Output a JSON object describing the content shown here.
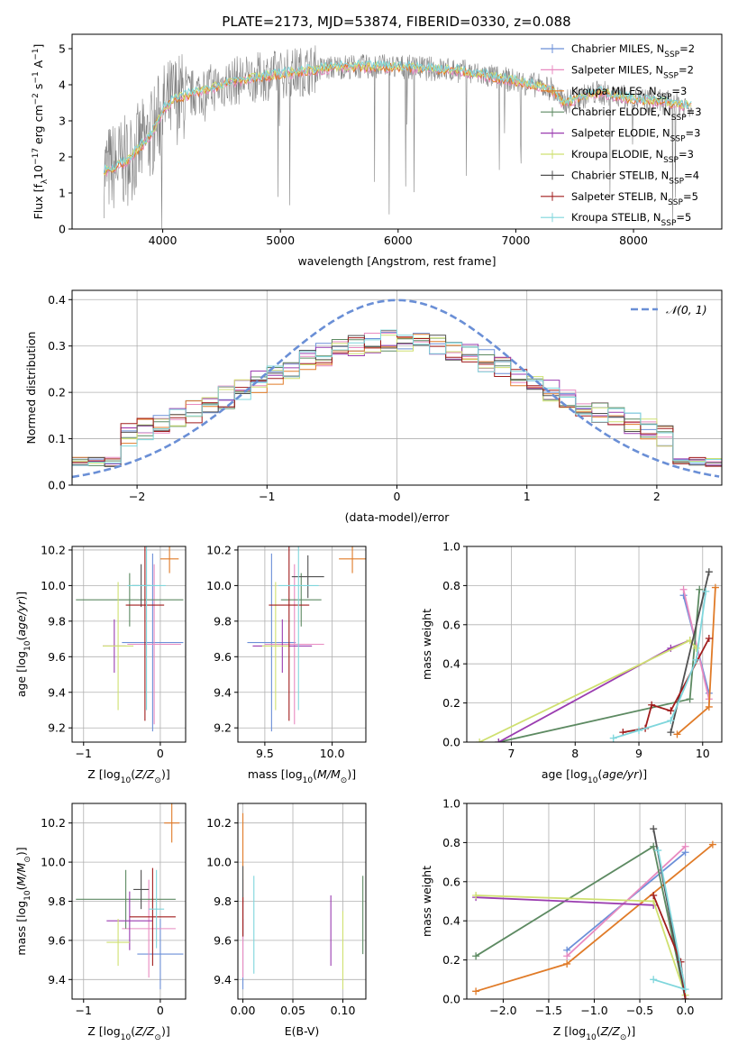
{
  "figure_title": "PLATE=2173, MJD=53874, FIBERID=0330, z=0.088",
  "colors": {
    "c1": "#6b8fd8",
    "c2": "#e88ac0",
    "c3": "#e07b28",
    "c4": "#5d8a62",
    "c5": "#9a3cb0",
    "c6": "#cfe070",
    "c7": "#505050",
    "c8": "#a01c1c",
    "c9": "#7fd6dc",
    "data": "#808080",
    "gauss": "#6a8fd6"
  },
  "chart_data": [
    {
      "type": "line",
      "id": "spectrum",
      "xlabel": "wavelength [Angstrom, rest frame]",
      "ylabel": "Flux [f",
      "xlim": [
        3230,
        8750
      ],
      "ylim": [
        0,
        5.4
      ],
      "xticks": [
        "4000",
        "5000",
        "6000",
        "7000",
        "8000"
      ],
      "yticks": [
        "0",
        "1",
        "2",
        "3",
        "4",
        "5"
      ],
      "legend_position": "upper-right",
      "continuum": [
        [
          3500,
          1.6
        ],
        [
          3700,
          1.9
        ],
        [
          3900,
          2.6
        ],
        [
          4000,
          3.3
        ],
        [
          4100,
          3.6
        ],
        [
          4300,
          3.8
        ],
        [
          4600,
          4.1
        ],
        [
          5000,
          4.3
        ],
        [
          5500,
          4.5
        ],
        [
          6000,
          4.5
        ],
        [
          6500,
          4.4
        ],
        [
          7000,
          4.1
        ],
        [
          7300,
          3.9
        ],
        [
          7400,
          3.5
        ],
        [
          7700,
          3.8
        ],
        [
          8000,
          3.6
        ],
        [
          8300,
          3.5
        ],
        [
          8500,
          3.4
        ]
      ],
      "series": [
        {
          "name": "Chabrier MILES, N",
          "sub": "SSP",
          "suffix": "=2",
          "color_key": "c1"
        },
        {
          "name": "Salpeter MILES, N",
          "sub": "SSP",
          "suffix": "=2",
          "color_key": "c2"
        },
        {
          "name": "Kroupa MILES, N",
          "sub": "SSP",
          "suffix": "=3",
          "color_key": "c3"
        },
        {
          "name": "Chabrier ELODIE, N",
          "sub": "SSP",
          "suffix": "=3",
          "color_key": "c4"
        },
        {
          "name": "Salpeter ELODIE, N",
          "sub": "SSP",
          "suffix": "=3",
          "color_key": "c5"
        },
        {
          "name": "Kroupa ELODIE, N",
          "sub": "SSP",
          "suffix": "=3",
          "color_key": "c6"
        },
        {
          "name": "Chabrier STELIB, N",
          "sub": "SSP",
          "suffix": "=4",
          "color_key": "c7"
        },
        {
          "name": "Salpeter STELIB, N",
          "sub": "SSP",
          "suffix": "=5",
          "color_key": "c8"
        },
        {
          "name": "Kroupa STELIB, N",
          "sub": "SSP",
          "suffix": "=5",
          "color_key": "c9"
        }
      ]
    },
    {
      "type": "histogram",
      "id": "residuals",
      "xlabel": "(data-model)/error",
      "ylabel": "Normed distribution",
      "xlim": [
        -2.5,
        2.5
      ],
      "ylim": [
        0,
        0.42
      ],
      "xticks": [
        "−2",
        "−1",
        "0",
        "1",
        "2"
      ],
      "yticks": [
        "0.0",
        "0.1",
        "0.2",
        "0.3",
        "0.4"
      ],
      "bin_width": 0.125,
      "legend": "𝒩(0, 1)",
      "legend_position": "upper-right"
    },
    {
      "type": "errorbar",
      "id": "age-vs-Z",
      "xlabel": "Z [log",
      "ylabel": "age  [log",
      "xlim": [
        -1.15,
        0.33
      ],
      "ylim": [
        9.12,
        10.22
      ],
      "xticks": [
        "−1",
        "0"
      ],
      "yticks": [
        "9.2",
        "9.4",
        "9.6",
        "9.8",
        "10.0",
        "10.2"
      ],
      "points": [
        {
          "c": "c1",
          "x": -0.1,
          "xe": 0.4,
          "y": 9.68,
          "ye": 0.5
        },
        {
          "c": "c2",
          "x": -0.08,
          "xe": 0.35,
          "y": 9.67,
          "ye": 0.45
        },
        {
          "c": "c3",
          "x": 0.12,
          "xe": 0.12,
          "y": 10.15,
          "ye": 0.08
        },
        {
          "c": "c4",
          "x": -0.4,
          "xe": 0.7,
          "y": 9.92,
          "ye": 0.15
        },
        {
          "c": "c5",
          "x": -0.6,
          "xe": 0.15,
          "y": 9.66,
          "ye": 0.15
        },
        {
          "c": "c6",
          "x": -0.55,
          "xe": 0.2,
          "y": 9.66,
          "ye": 0.36
        },
        {
          "c": "c7",
          "x": -0.25,
          "xe": 0.12,
          "y": 10.0,
          "ye": 0.12
        },
        {
          "c": "c8",
          "x": -0.2,
          "xe": 0.25,
          "y": 9.89,
          "ye": 0.65
        },
        {
          "c": "c9",
          "x": -0.18,
          "xe": 0.25,
          "y": 10.0,
          "ye": 0.7
        }
      ]
    },
    {
      "type": "errorbar",
      "id": "age-vs-mass",
      "xlabel": "mass [log",
      "ylabel": "",
      "xlim": [
        9.3,
        10.25
      ],
      "ylim": [
        9.12,
        10.22
      ],
      "xticks": [
        "9.5",
        "10.0"
      ],
      "yticks": [
        "9.2",
        "9.4",
        "9.6",
        "9.8",
        "10.0",
        "10.2"
      ],
      "points": [
        {
          "c": "c1",
          "x": 9.55,
          "xe": 0.18,
          "y": 9.68,
          "ye": 0.5
        },
        {
          "c": "c2",
          "x": 9.72,
          "xe": 0.22,
          "y": 9.67,
          "ye": 0.45
        },
        {
          "c": "c3",
          "x": 10.15,
          "xe": 0.1,
          "y": 10.15,
          "ye": 0.08
        },
        {
          "c": "c4",
          "x": 9.77,
          "xe": 0.15,
          "y": 9.92,
          "ye": 0.15
        },
        {
          "c": "c5",
          "x": 9.63,
          "xe": 0.22,
          "y": 9.66,
          "ye": 0.15
        },
        {
          "c": "c6",
          "x": 9.58,
          "xe": 0.1,
          "y": 9.66,
          "ye": 0.36
        },
        {
          "c": "c7",
          "x": 9.82,
          "xe": 0.12,
          "y": 10.05,
          "ye": 0.12
        },
        {
          "c": "c8",
          "x": 9.68,
          "xe": 0.15,
          "y": 9.89,
          "ye": 0.65
        },
        {
          "c": "c9",
          "x": 9.75,
          "xe": 0.15,
          "y": 10.0,
          "ye": 0.7
        }
      ]
    },
    {
      "type": "line",
      "id": "massweight-vs-age",
      "xlabel": "age  [log",
      "ylabel": "mass weight",
      "xlim": [
        6.3,
        10.3
      ],
      "ylim": [
        0,
        1
      ],
      "xticks": [
        "7",
        "8",
        "9",
        "10"
      ],
      "yticks": [
        "0.0",
        "0.2",
        "0.4",
        "0.6",
        "0.8",
        "1.0"
      ],
      "series": [
        {
          "c": "c1",
          "pts": [
            [
              9.7,
              0.75
            ],
            [
              10.1,
              0.25
            ]
          ]
        },
        {
          "c": "c2",
          "pts": [
            [
              9.7,
              0.78
            ],
            [
              10.1,
              0.22
            ]
          ]
        },
        {
          "c": "c3",
          "pts": [
            [
              9.6,
              0.04
            ],
            [
              10.1,
              0.18
            ],
            [
              10.2,
              0.79
            ]
          ]
        },
        {
          "c": "c4",
          "pts": [
            [
              6.8,
              0.0
            ],
            [
              9.8,
              0.22
            ],
            [
              9.95,
              0.78
            ]
          ]
        },
        {
          "c": "c5",
          "pts": [
            [
              6.8,
              0.0
            ],
            [
              9.5,
              0.48
            ],
            [
              9.8,
              0.52
            ]
          ]
        },
        {
          "c": "c6",
          "pts": [
            [
              6.5,
              0.0
            ],
            [
              9.8,
              0.52
            ],
            [
              9.9,
              0.48
            ]
          ]
        },
        {
          "c": "c7",
          "pts": [
            [
              9.5,
              0.05
            ],
            [
              10.1,
              0.87
            ]
          ]
        },
        {
          "c": "c8",
          "pts": [
            [
              8.75,
              0.05
            ],
            [
              9.1,
              0.07
            ],
            [
              9.2,
              0.19
            ],
            [
              9.5,
              0.16
            ],
            [
              10.1,
              0.53
            ]
          ]
        },
        {
          "c": "c9",
          "pts": [
            [
              8.6,
              0.02
            ],
            [
              9.0,
              0.06
            ],
            [
              9.5,
              0.11
            ],
            [
              9.9,
              0.42
            ],
            [
              10.05,
              0.77
            ]
          ]
        }
      ]
    },
    {
      "type": "errorbar",
      "id": "mass-vs-Z",
      "xlabel": "Z [log",
      "ylabel": "mass [log",
      "xlim": [
        -1.15,
        0.33
      ],
      "ylim": [
        9.3,
        10.3
      ],
      "xticks": [
        "−1",
        "0"
      ],
      "yticks": [
        "9.4",
        "9.6",
        "9.8",
        "10.0",
        "10.2"
      ],
      "points": [
        {
          "c": "c1",
          "x": 0.0,
          "xe": 0.3,
          "y": 9.53,
          "ye": 0.18
        },
        {
          "c": "c2",
          "x": -0.15,
          "xe": 0.35,
          "y": 9.66,
          "ye": 0.25
        },
        {
          "c": "c3",
          "x": 0.15,
          "xe": 0.1,
          "y": 10.2,
          "ye": 0.1
        },
        {
          "c": "c4",
          "x": -0.45,
          "xe": 0.65,
          "y": 9.81,
          "ye": 0.15
        },
        {
          "c": "c5",
          "x": -0.4,
          "xe": 0.3,
          "y": 9.7,
          "ye": 0.15
        },
        {
          "c": "c6",
          "x": -0.55,
          "xe": 0.15,
          "y": 9.59,
          "ye": 0.12
        },
        {
          "c": "c7",
          "x": -0.25,
          "xe": 0.1,
          "y": 9.86,
          "ye": 0.1
        },
        {
          "c": "c8",
          "x": -0.1,
          "xe": 0.3,
          "y": 9.72,
          "ye": 0.25
        },
        {
          "c": "c9",
          "x": -0.05,
          "xe": 0.1,
          "y": 9.76,
          "ye": 0.2
        }
      ]
    },
    {
      "type": "errorbar",
      "id": "mass-vs-EBV",
      "xlabel": "E(B-V)",
      "ylabel": "",
      "xlim": [
        -0.005,
        0.123
      ],
      "ylim": [
        9.3,
        10.3
      ],
      "xticks": [
        "0.00",
        "0.05",
        "0.10"
      ],
      "yticks": [
        "9.4",
        "9.6",
        "9.8",
        "10.0",
        "10.2"
      ],
      "points": [
        {
          "c": "c1",
          "x": 0.0,
          "xe": 0,
          "y": 9.53,
          "ye": 0.18
        },
        {
          "c": "c2",
          "x": 0.0,
          "xe": 0,
          "y": 9.66,
          "ye": 0.25
        },
        {
          "c": "c3",
          "x": 0.0,
          "xe": 0,
          "y": 10.02,
          "ye": 0.23
        },
        {
          "c": "c4",
          "x": 0.12,
          "xe": 0,
          "y": 9.73,
          "ye": 0.2
        },
        {
          "c": "c5",
          "x": 0.088,
          "xe": 0,
          "y": 9.65,
          "ye": 0.18
        },
        {
          "c": "c6",
          "x": 0.1,
          "xe": 0,
          "y": 9.55,
          "ye": 0.2
        },
        {
          "c": "c7",
          "x": 0.0,
          "xe": 0,
          "y": 9.8,
          "ye": 0.18
        },
        {
          "c": "c8",
          "x": 0.0,
          "xe": 0,
          "y": 9.72,
          "ye": 0.1
        },
        {
          "c": "c9",
          "x": 0.011,
          "xe": 0,
          "y": 9.68,
          "ye": 0.25
        }
      ]
    },
    {
      "type": "line",
      "id": "massweight-vs-Z",
      "xlabel": "Z [log",
      "ylabel": "mass weight",
      "xlim": [
        -2.4,
        0.4
      ],
      "ylim": [
        0,
        1
      ],
      "xticks": [
        "−2.0",
        "−1.5",
        "−1.0",
        "−0.5",
        "0.0"
      ],
      "yticks": [
        "0.0",
        "0.2",
        "0.4",
        "0.6",
        "0.8",
        "1.0"
      ],
      "series": [
        {
          "c": "c1",
          "pts": [
            [
              -1.3,
              0.25
            ],
            [
              0.0,
              0.75
            ]
          ]
        },
        {
          "c": "c2",
          "pts": [
            [
              -1.3,
              0.22
            ],
            [
              0.0,
              0.78
            ]
          ]
        },
        {
          "c": "c3",
          "pts": [
            [
              -2.3,
              0.04
            ],
            [
              -1.3,
              0.18
            ],
            [
              0.3,
              0.79
            ]
          ]
        },
        {
          "c": "c4",
          "pts": [
            [
              -2.3,
              0.22
            ],
            [
              -0.35,
              0.78
            ],
            [
              0.0,
              0.0
            ]
          ]
        },
        {
          "c": "c5",
          "pts": [
            [
              -2.3,
              0.52
            ],
            [
              -0.35,
              0.48
            ]
          ]
        },
        {
          "c": "c6",
          "pts": [
            [
              -2.3,
              0.53
            ],
            [
              -0.35,
              0.5
            ],
            [
              0.0,
              0.02
            ]
          ]
        },
        {
          "c": "c7",
          "pts": [
            [
              -0.35,
              0.87
            ],
            [
              0.0,
              0.0
            ]
          ]
        },
        {
          "c": "c8",
          "pts": [
            [
              -0.35,
              0.53
            ],
            [
              -0.05,
              0.19
            ],
            [
              0.0,
              0.0
            ]
          ]
        },
        {
          "c": "c9",
          "pts": [
            [
              -0.35,
              0.1
            ],
            [
              0.0,
              0.05
            ],
            [
              -0.3,
              0.76
            ]
          ]
        }
      ]
    }
  ]
}
